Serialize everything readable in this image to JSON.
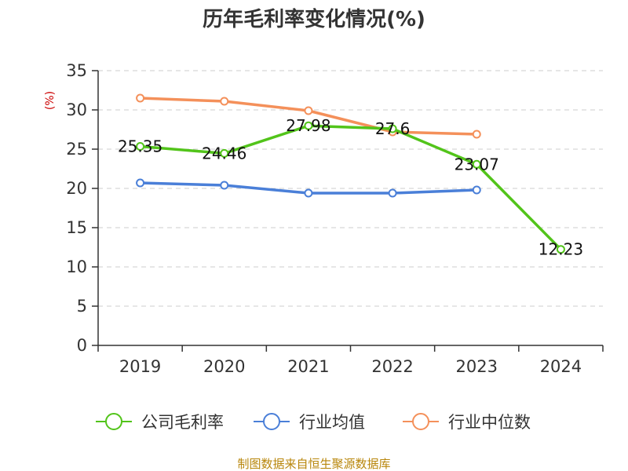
{
  "chart_data": {
    "type": "line",
    "title": "历年毛利率变化情况(%)",
    "ylabel": "(%)",
    "ylim": [
      0,
      35
    ],
    "yticks": [
      0,
      5,
      10,
      15,
      20,
      25,
      30,
      35
    ],
    "categories": [
      "2019",
      "2020",
      "2021",
      "2022",
      "2023",
      "2024"
    ],
    "grid": true,
    "legend_position": "bottom",
    "series": [
      {
        "name": "公司毛利率",
        "color": "#52c41a",
        "values": [
          25.35,
          24.46,
          27.98,
          27.6,
          23.07,
          12.23
        ],
        "labels": [
          "25.35",
          "24.46",
          "27.98",
          "27.6",
          "23.07",
          "12.23"
        ]
      },
      {
        "name": "行业均值",
        "color": "#4a7fd8",
        "values": [
          20.7,
          20.4,
          19.4,
          19.4,
          19.8,
          null
        ]
      },
      {
        "name": "行业中位数",
        "color": "#f4905a",
        "values": [
          31.5,
          31.1,
          29.9,
          27.2,
          26.9,
          null
        ]
      }
    ],
    "source": "制图数据来自恒生聚源数据库"
  }
}
